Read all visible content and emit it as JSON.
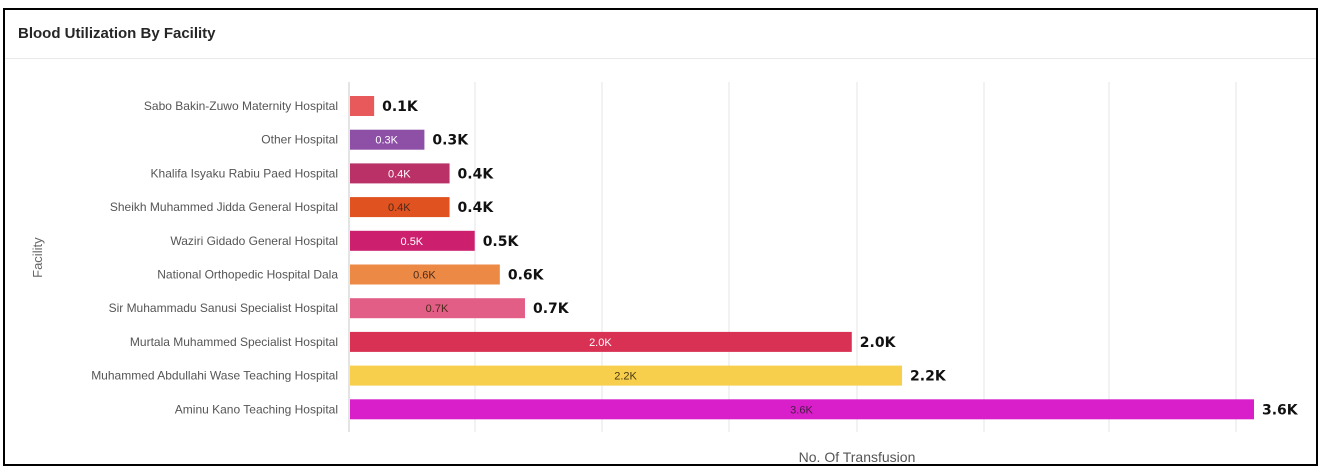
{
  "panel": {
    "title": "Blood Utilization By Facility"
  },
  "chart_data": {
    "type": "bar",
    "orientation": "horizontal",
    "title": "Blood Utilization By Facility",
    "xlabel": "No. Of Transfusion",
    "ylabel": "Facility",
    "categories": [
      "Sabo Bakin-Zuwo Maternity Hospital",
      "Other Hospital",
      "Khalifa Isyaku Rabiu Paed Hospital",
      "Sheikh Muhammed Jidda General Hospital",
      "Waziri Gidado General Hospital",
      "National Orthopedic Hospital Dala",
      "Sir Muhammadu Sanusi Specialist Hospital",
      "Murtala Muhammed Specialist Hospital",
      "Muhammed Abdullahi Wase Teaching Hospital",
      "Aminu Kano Teaching Hospital"
    ],
    "values": [
      100,
      300,
      400,
      400,
      500,
      600,
      700,
      2000,
      2200,
      3600
    ],
    "inner_labels": [
      "",
      "0.3K",
      "0.4K",
      "0.4K",
      "0.5K",
      "0.6K",
      "0.7K",
      "2.0K",
      "2.2K",
      "3.6K"
    ],
    "outer_labels": [
      "0.1K",
      "0.3K",
      "0.4K",
      "0.4K",
      "0.5K",
      "0.6K",
      "0.7K",
      "2.0K",
      "2.2K",
      "3.6K"
    ],
    "colors": [
      "#e8595b",
      "#8e4fa6",
      "#b93167",
      "#e0521f",
      "#cc1f6d",
      "#ec8a45",
      "#e25e86",
      "#d93153",
      "#f7cf4c",
      "#d81fca"
    ],
    "inner_label_colors": [
      "#ffffff",
      "#ffffff",
      "#ffffff",
      "#4a2a1a",
      "#ffffff",
      "#4a2a1a",
      "#4a2a1a",
      "#ffffff",
      "#4a3a10",
      "#4a1a45"
    ],
    "xlim": [
      0,
      3600
    ],
    "grid": true
  }
}
